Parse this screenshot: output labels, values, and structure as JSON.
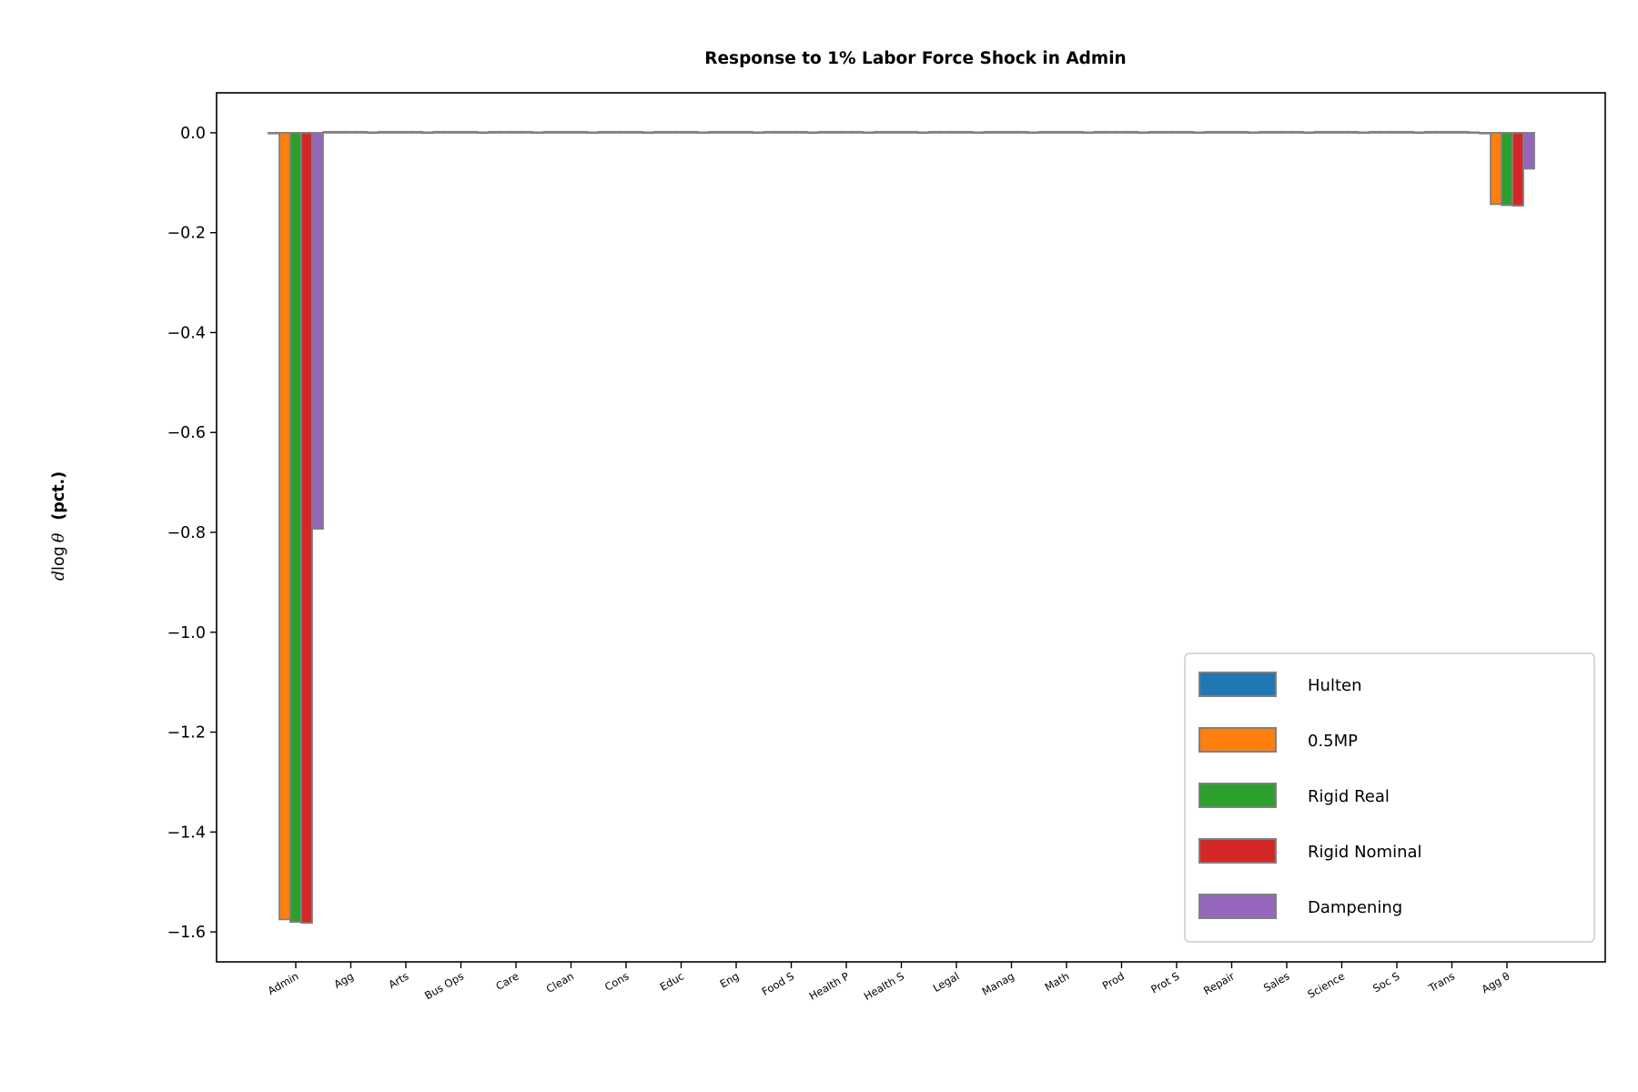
{
  "chart_data": {
    "type": "bar",
    "title": "Response to 1% Labor Force Shock in Admin",
    "ylabel": {
      "symbol": "d",
      "log": "log",
      "theta": "θ",
      "unit": "(pct.)"
    },
    "xlabel": "",
    "ylim": [
      -1.66,
      0.08
    ],
    "yticks": [
      0.0,
      -0.2,
      -0.4,
      -0.6,
      -0.8,
      -1.0,
      -1.2,
      -1.4,
      -1.6
    ],
    "ytick_labels": [
      "0.0",
      "−0.2",
      "−0.4",
      "−0.6",
      "−0.8",
      "−1.0",
      "−1.2",
      "−1.4",
      "−1.6"
    ],
    "categories": [
      "Admin",
      "Agg",
      "Arts",
      "Bus Ops",
      "Care",
      "Clean",
      "Cons",
      "Educ",
      "Eng",
      "Food S",
      "Health P",
      "Health S",
      "Legal",
      "Manag",
      "Math",
      "Prod",
      "Prot S",
      "Repair",
      "Sales",
      "Science",
      "Soc S",
      "Trans",
      "Agg θ"
    ],
    "series": [
      {
        "name": "Hulten",
        "color": "#1f77b4",
        "values": [
          0.0,
          0.002,
          0.002,
          0.002,
          0.002,
          0.002,
          0.002,
          0.002,
          0.002,
          0.002,
          0.002,
          0.002,
          0.002,
          0.002,
          0.002,
          0.002,
          0.002,
          0.002,
          0.002,
          0.002,
          0.002,
          0.002,
          0.0
        ]
      },
      {
        "name": "0.5MP",
        "color": "#ff7f0e",
        "values": [
          -1.575,
          0.002,
          0.002,
          0.002,
          0.002,
          0.002,
          0.002,
          0.002,
          0.002,
          0.002,
          0.002,
          0.002,
          0.002,
          0.002,
          0.002,
          0.002,
          0.002,
          0.002,
          0.002,
          0.002,
          0.002,
          0.002,
          -0.143
        ]
      },
      {
        "name": "Rigid Real",
        "color": "#2ca02c",
        "values": [
          -1.58,
          0.002,
          0.002,
          0.002,
          0.002,
          0.002,
          0.002,
          0.002,
          0.002,
          0.002,
          0.002,
          0.002,
          0.002,
          0.002,
          0.002,
          0.002,
          0.002,
          0.002,
          0.002,
          0.002,
          0.002,
          0.002,
          -0.145
        ]
      },
      {
        "name": "Rigid Nominal",
        "color": "#d62728",
        "values": [
          -1.582,
          0.002,
          0.002,
          0.002,
          0.002,
          0.002,
          0.002,
          0.002,
          0.002,
          0.002,
          0.002,
          0.002,
          0.002,
          0.002,
          0.002,
          0.002,
          0.002,
          0.002,
          0.002,
          0.002,
          0.002,
          0.002,
          -0.146
        ]
      },
      {
        "name": "Dampening",
        "color": "#9467bd",
        "values": [
          -0.793,
          0.001,
          0.001,
          0.001,
          0.001,
          0.001,
          0.001,
          0.001,
          0.001,
          0.001,
          0.001,
          0.001,
          0.001,
          0.001,
          0.001,
          0.001,
          0.001,
          0.001,
          0.001,
          0.001,
          0.001,
          0.001,
          -0.072
        ]
      }
    ],
    "bar_edge_color": "#808080",
    "grid": false,
    "legend_position": "lower right"
  }
}
